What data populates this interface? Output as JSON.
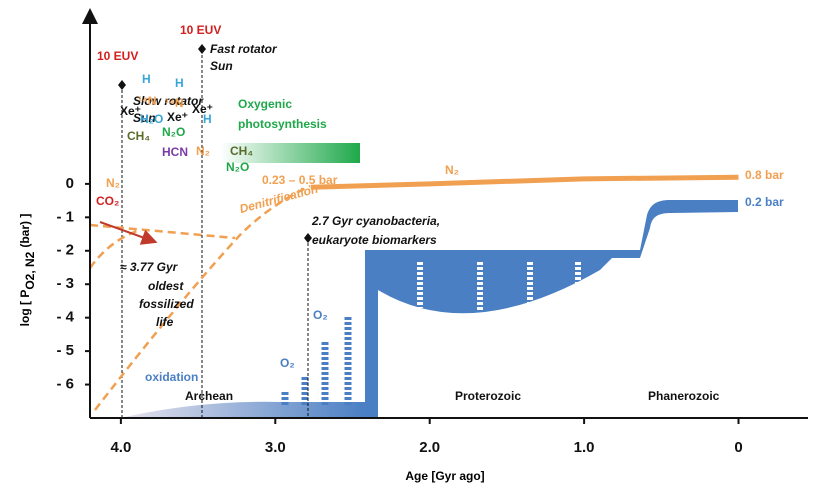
{
  "chart_data": {
    "type": "line",
    "xlabel": "Age [Gyr ago]",
    "ylabel": {
      "main": "log [ P",
      "sub": "O2, N2",
      "end": "(bar) ]"
    },
    "xlim": [
      4.2,
      -0.45
    ],
    "ylim": [
      -7,
      4.9
    ],
    "xticks": [
      {
        "value": 4,
        "label": "4.0"
      },
      {
        "value": 3,
        "label": "3.0"
      },
      {
        "value": 2,
        "label": "2.0"
      },
      {
        "value": 1,
        "label": "1.0"
      },
      0
    ],
    "yticks": [
      0,
      {
        "value": -1,
        "label": "- 1"
      },
      {
        "value": -2,
        "label": "- 2"
      },
      {
        "value": -3,
        "label": "- 3"
      },
      {
        "value": -4,
        "label": "- 4"
      },
      {
        "value": -5,
        "label": "- 5"
      },
      {
        "value": -6,
        "label": "- 6"
      }
    ],
    "series": [
      {
        "color": "#f0a050",
        "x": [
          2.77,
          2.0,
          1.0,
          0
        ],
        "values": [
          -0.1,
          0.0,
          0.15,
          0.2
        ]
      }
    ],
    "annotations": [
      "10 EUV",
      "10 EUV",
      "Fast rotator",
      "Sun",
      "Slow rotator",
      "Sun",
      "H",
      "H",
      "H",
      "Xe⁺",
      "¹⁴N",
      "¹⁴N",
      "H₂O",
      "Xe⁺",
      "Xe⁺",
      "CH₄",
      "N₂O",
      "HCN",
      "N₂",
      "CH₄",
      "N₂O",
      "N₂",
      "CO₂",
      "Oxygenic",
      "photosynthesis",
      "0.23 – 0.5 bar",
      "Denitrification",
      "N₂",
      "0.8 bar",
      "0.2 bar",
      "2.7 Gyr cyanobacteria,",
      "eukaryote biomarkers",
      "≈ 3.77 Gyr",
      "oldest",
      "fossilized",
      "life",
      "O₂",
      "O₂",
      "oxidation",
      "Archean",
      "Proterozoic",
      "Phanerozoic"
    ]
  }
}
